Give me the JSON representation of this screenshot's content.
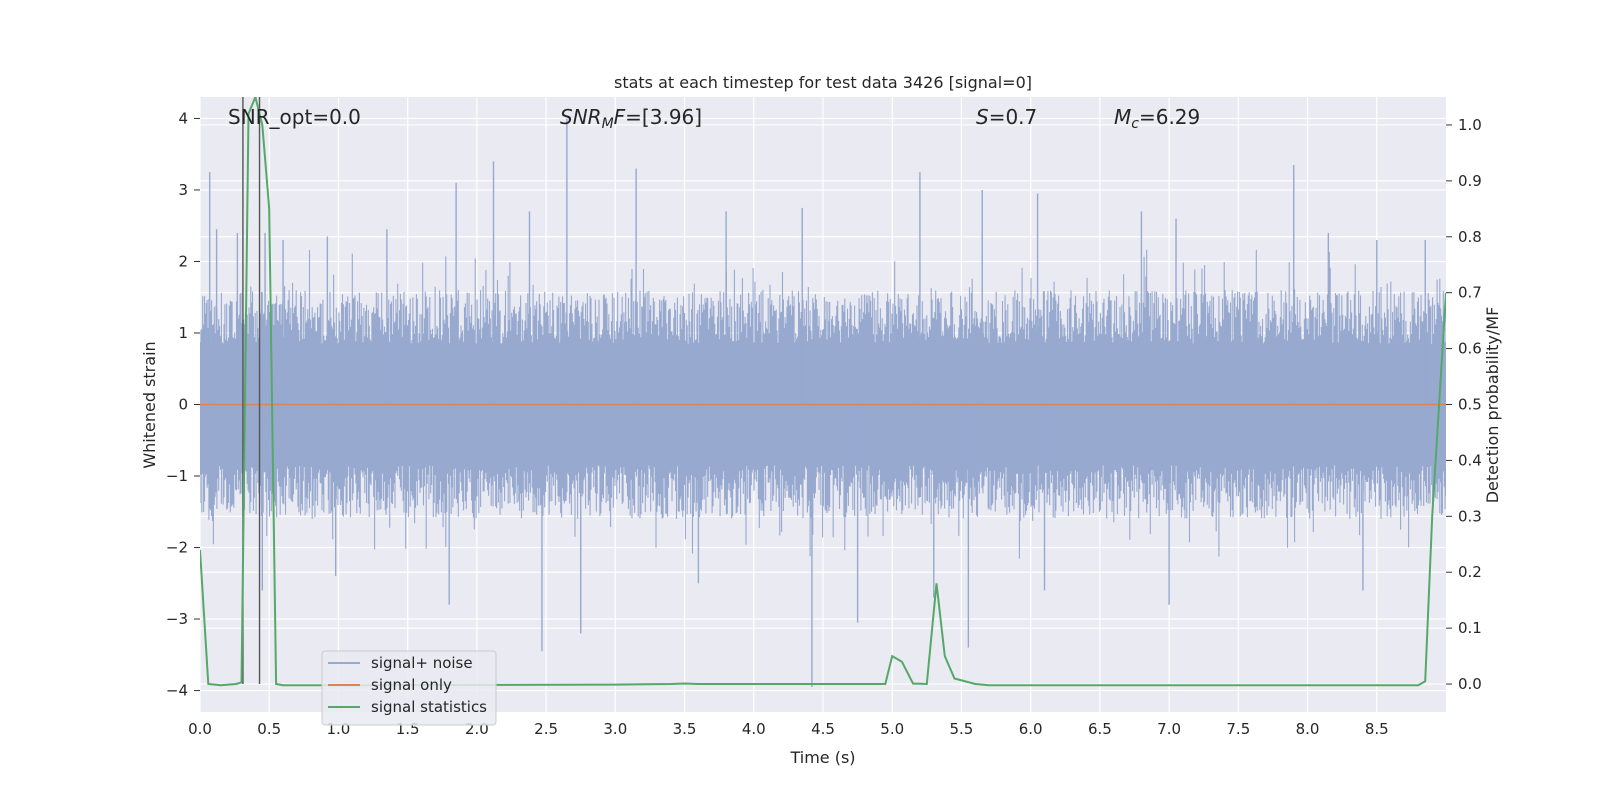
{
  "chart_data": {
    "type": "line",
    "title": "stats at each timestep for test data 3426 [signal=0]",
    "xlabel": "Time (s)",
    "ylabel_left": "Whitened strain",
    "ylabel_right": "Detection probability/MF",
    "xlim": [
      0.0,
      9.0
    ],
    "ylim_left": [
      -4.3,
      4.3
    ],
    "ylim_right": [
      -0.05,
      1.05
    ],
    "x_ticks": [
      "0.0",
      "0.5",
      "1.0",
      "1.5",
      "2.0",
      "2.5",
      "3.0",
      "3.5",
      "4.0",
      "4.5",
      "5.0",
      "5.5",
      "6.0",
      "6.5",
      "7.0",
      "7.5",
      "8.0",
      "8.5"
    ],
    "y_left_ticks": [
      "4",
      "3",
      "2",
      "1",
      "0",
      "−1",
      "−2",
      "−3",
      "−4"
    ],
    "y_right_ticks": [
      "1.0",
      "0.9",
      "0.8",
      "0.7",
      "0.6",
      "0.5",
      "0.4",
      "0.3",
      "0.2",
      "0.1",
      "0.0"
    ],
    "annotations": {
      "snr_opt": "SNR_opt=0.0",
      "snr_mf_sym": "SNR",
      "snr_mf_sub": "M",
      "snr_mf_f": "F",
      "snr_mf_val": "=[3.96]",
      "s_sym": "S",
      "s_val": "=0.7",
      "mc_sym": "M",
      "mc_sub": "c",
      "mc_val": "=6.29"
    },
    "legend": [
      "signal+ noise",
      "signal only",
      "signal statistics"
    ],
    "colors": {
      "noise": "#97a9cf",
      "signal": "#dd8452",
      "stats": "#55a868",
      "background": "#eaeaf2",
      "grid": "#ffffff",
      "vline": "#555555"
    },
    "series": [
      {
        "name": "signal+ noise",
        "axis": "left",
        "description": "noise band approx ±1.5 with spikes",
        "spikes": [
          {
            "x": 0.07,
            "y": 3.25
          },
          {
            "x": 0.12,
            "y": 2.45
          },
          {
            "x": 0.27,
            "y": 2.4
          },
          {
            "x": 0.47,
            "y": 2.4
          },
          {
            "x": 0.6,
            "y": 2.3
          },
          {
            "x": 0.92,
            "y": 2.35
          },
          {
            "x": 1.35,
            "y": 2.45
          },
          {
            "x": 1.85,
            "y": 3.1
          },
          {
            "x": 2.12,
            "y": 3.4
          },
          {
            "x": 2.38,
            "y": 2.7
          },
          {
            "x": 2.65,
            "y": 4.0
          },
          {
            "x": 3.15,
            "y": 3.3
          },
          {
            "x": 3.8,
            "y": 2.7
          },
          {
            "x": 4.35,
            "y": 2.75
          },
          {
            "x": 5.2,
            "y": 3.25
          },
          {
            "x": 5.65,
            "y": 3.0
          },
          {
            "x": 6.05,
            "y": 2.95
          },
          {
            "x": 6.8,
            "y": 2.7
          },
          {
            "x": 7.05,
            "y": 2.6
          },
          {
            "x": 7.9,
            "y": 3.35
          },
          {
            "x": 8.15,
            "y": 2.4
          },
          {
            "x": 8.5,
            "y": 2.3
          },
          {
            "x": 8.85,
            "y": 2.3
          },
          {
            "x": 0.45,
            "y": -2.6
          },
          {
            "x": 0.98,
            "y": -2.4
          },
          {
            "x": 1.8,
            "y": -2.8
          },
          {
            "x": 2.47,
            "y": -3.45
          },
          {
            "x": 2.75,
            "y": -3.2
          },
          {
            "x": 3.6,
            "y": -2.5
          },
          {
            "x": 4.42,
            "y": -3.95
          },
          {
            "x": 4.75,
            "y": -3.05
          },
          {
            "x": 5.3,
            "y": -2.7
          },
          {
            "x": 5.55,
            "y": -3.4
          },
          {
            "x": 6.1,
            "y": -2.6
          },
          {
            "x": 7.0,
            "y": -2.8
          },
          {
            "x": 8.4,
            "y": -2.6
          }
        ]
      },
      {
        "name": "signal only",
        "axis": "left",
        "x": [
          0.0,
          9.0
        ],
        "y": [
          0.0,
          0.0
        ]
      },
      {
        "name": "signal statistics",
        "axis": "right",
        "x": [
          0.0,
          0.06,
          0.15,
          0.26,
          0.3,
          0.35,
          0.4,
          0.45,
          0.5,
          0.55,
          0.6,
          0.8,
          1.2,
          3.0,
          3.4,
          3.5,
          3.6,
          4.9,
          4.95,
          5.0,
          5.07,
          5.15,
          5.25,
          5.32,
          5.38,
          5.45,
          5.6,
          5.7,
          8.8,
          8.85,
          8.9,
          9.0
        ],
        "y": [
          0.24,
          0.0,
          -0.002,
          0.0,
          0.003,
          1.02,
          1.05,
          1.0,
          0.85,
          0.0,
          -0.002,
          -0.002,
          -0.002,
          -0.001,
          0.0,
          0.001,
          0.0,
          0.0,
          0.0,
          0.05,
          0.04,
          0.001,
          0.0,
          0.18,
          0.05,
          0.01,
          0.0,
          -0.002,
          -0.002,
          0.005,
          0.3,
          0.7
        ]
      }
    ],
    "vertical_lines_x": [
      0.31,
      0.43
    ]
  }
}
